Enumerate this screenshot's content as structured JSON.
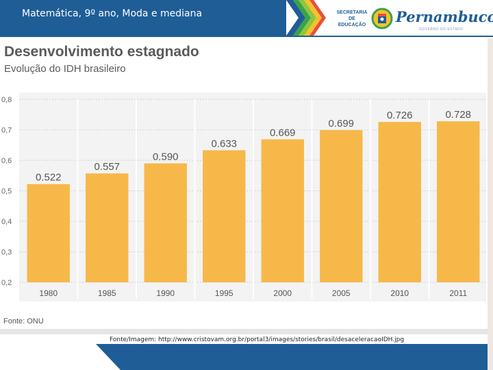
{
  "header": {
    "title": "Matemática, 9º ano, Moda e mediana",
    "secretaria": "SECRETARIA DE EDUCAÇÃO",
    "state_name": "Pernambuco",
    "state_tagline": "GOVERNO DO ESTADO",
    "bar_color": "#1f5d97"
  },
  "chart_data": {
    "type": "bar",
    "title": "Desenvolvimento estagnado",
    "subtitle": "Evolução do IDH brasileiro",
    "categories": [
      "1980",
      "1985",
      "1990",
      "1995",
      "2000",
      "2005",
      "2010",
      "2011"
    ],
    "values": [
      0.522,
      0.557,
      0.59,
      0.633,
      0.669,
      0.699,
      0.726,
      0.728
    ],
    "value_labels": [
      "0.522",
      "0.557",
      "0.590",
      "0.633",
      "0.669",
      "0.699",
      "0.726",
      "0.728"
    ],
    "yticks": [
      0.8,
      0.7,
      0.6,
      0.5,
      0.4,
      0.3,
      0.2
    ],
    "ytick_labels": [
      "0,8",
      "0,7",
      "0,6",
      "0,5",
      "0,4",
      "0,3",
      "0,2"
    ],
    "ylim": [
      0.2,
      0.8
    ],
    "bar_color": "#f7b84a",
    "grid": "dotted horizontal",
    "source": "Fonte: ONU"
  },
  "credit": "Fonte/Imagem: http://www.cristovam.org.br/portal3/images/stories/brasil/desaceleracaoIDH.jpg"
}
